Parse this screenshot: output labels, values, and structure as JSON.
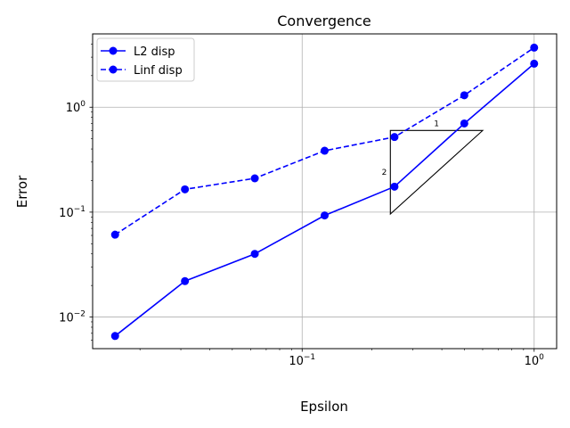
{
  "chart_data": {
    "type": "line",
    "title": "Convergence",
    "xlabel": "Epsilon",
    "ylabel": "Error",
    "xscale": "log",
    "yscale": "log",
    "xlim": [
      0.0125,
      1.25
    ],
    "ylim": [
      0.005,
      5.0
    ],
    "grid": true,
    "legend_position": "top-left",
    "x_ticks": [
      {
        "value": 0.1,
        "base": "10",
        "exp": "−1"
      },
      {
        "value": 1.0,
        "base": "10",
        "exp": "0"
      }
    ],
    "y_ticks": [
      {
        "value": 0.01,
        "base": "10",
        "exp": "−2"
      },
      {
        "value": 0.1,
        "base": "10",
        "exp": "−1"
      },
      {
        "value": 1.0,
        "base": "10",
        "exp": "0"
      }
    ],
    "x": [
      0.015625,
      0.03125,
      0.0625,
      0.125,
      0.25,
      0.5,
      1.0
    ],
    "series": [
      {
        "name": "L2 disp",
        "style": "solid",
        "color": "#0000ff",
        "values": [
          0.0066,
          0.022,
          0.04,
          0.093,
          0.175,
          0.7,
          2.6
        ]
      },
      {
        "name": "Linf disp",
        "style": "dashed",
        "color": "#0000ff",
        "values": [
          0.061,
          0.165,
          0.21,
          0.385,
          0.52,
          1.3,
          3.7
        ]
      }
    ],
    "slope_triangle": {
      "run_label": "1",
      "rise_label": "2",
      "x0": 0.24,
      "x1": 0.6,
      "y_top": 0.6,
      "y_bottom": 0.096
    }
  }
}
